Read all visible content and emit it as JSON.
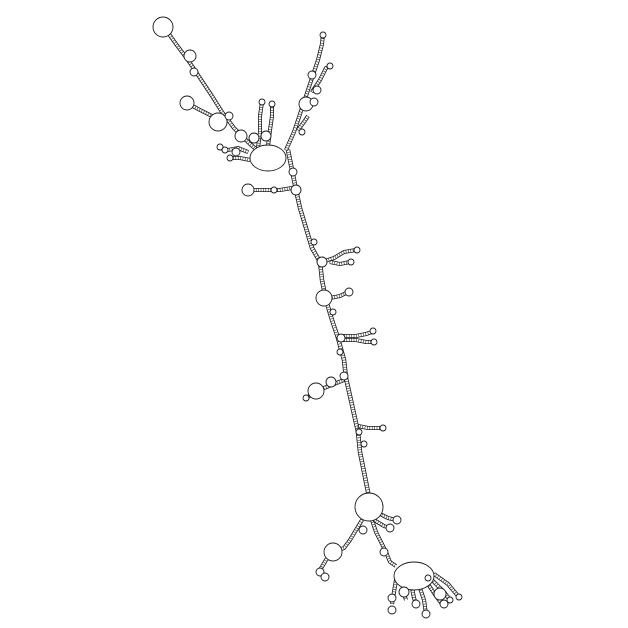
{
  "diagram": {
    "kind": "rna-secondary-structure",
    "background_color": "#ffffff",
    "stroke_color": "#1a1a1a",
    "loop_fill": "#ffffff"
  }
}
